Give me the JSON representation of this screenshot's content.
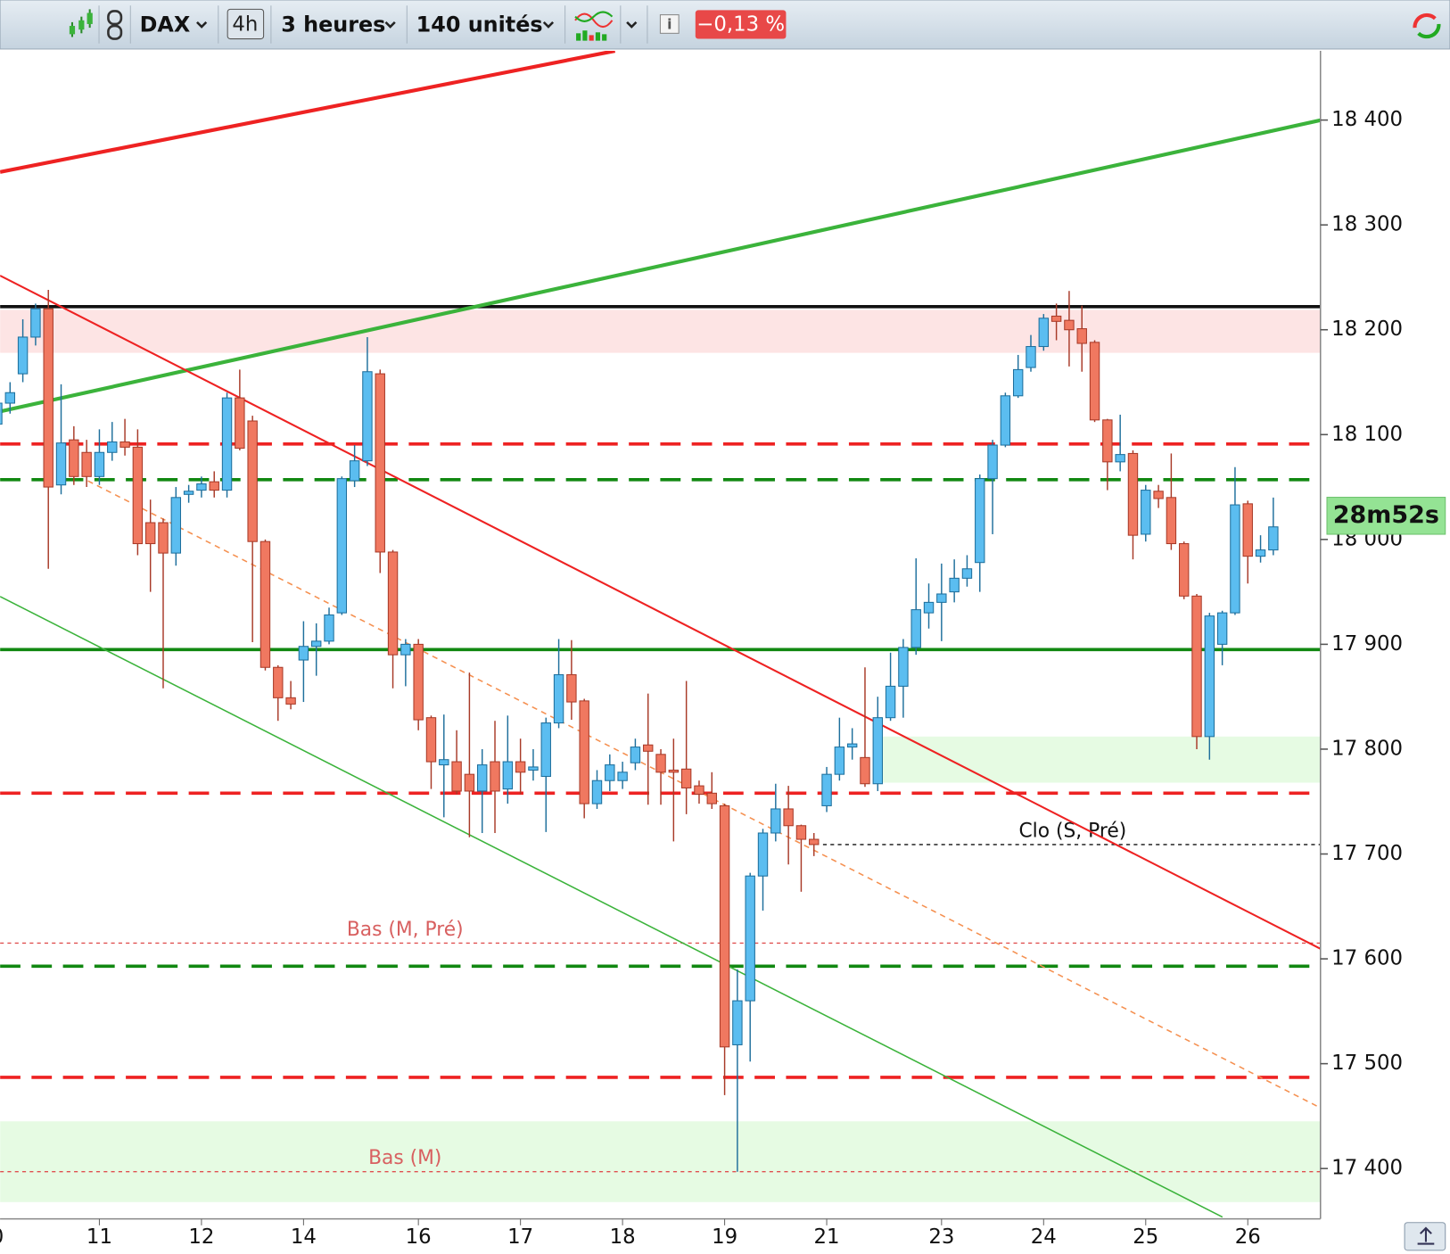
{
  "toolbar": {
    "symbol": "DAX",
    "timeframe_badge": "4h",
    "period": "3 heures",
    "units": "140 unités",
    "change": "−0,13 %"
  },
  "chart_data": {
    "type": "candlestick",
    "countdown": "28m52s",
    "categories": [
      "0",
      null,
      null,
      null,
      null,
      null,
      null,
      null,
      "11",
      null,
      null,
      null,
      null,
      null,
      null,
      null,
      "12",
      null,
      null,
      null,
      null,
      null,
      null,
      null,
      "14",
      null,
      null,
      null,
      null,
      null,
      null,
      null,
      null,
      "16",
      null,
      null,
      null,
      null,
      null,
      null,
      null,
      "17",
      null,
      null,
      null,
      null,
      null,
      null,
      null,
      "18",
      null,
      null,
      null,
      null,
      null,
      null,
      null,
      "19",
      null,
      null,
      null,
      null,
      null,
      null,
      null,
      "21",
      null,
      null,
      null,
      null,
      null,
      null,
      null,
      null,
      "23",
      null,
      null,
      null,
      null,
      null,
      null,
      null,
      "24",
      null,
      null,
      null,
      null,
      null,
      null,
      null,
      "25",
      null,
      null,
      null,
      null,
      null,
      null,
      null,
      "26",
      null,
      null
    ],
    "open": [
      18110,
      18130,
      18158,
      18193,
      18220,
      18052,
      18095,
      18083,
      18060,
      18083,
      18093,
      18088,
      18016,
      18016,
      17987,
      18043,
      18047,
      18055,
      18047,
      18135,
      18113,
      17998,
      17878,
      17849,
      17885,
      17898,
      17903,
      17930,
      18056,
      18075,
      18158,
      17988,
      17890,
      17900,
      17830,
      17785,
      17788,
      17776,
      17760,
      17788,
      17762,
      17788,
      17780,
      17774,
      17825,
      17871,
      17846,
      17748,
      17770,
      17770,
      17787,
      17804,
      17795,
      17780,
      17781,
      17765,
      17758,
      17746,
      17518,
      17560,
      17679,
      17720,
      17743,
      17727,
      17714,
      17746,
      17776,
      17802,
      17792,
      17767,
      17830,
      17860,
      17897,
      17930,
      17940,
      17950,
      17963,
      17978,
      18058,
      18090,
      18137,
      18164,
      18184,
      18213,
      18209,
      18201,
      18188,
      18114,
      18074,
      18082,
      18005,
      18046,
      18040,
      17996,
      17946,
      17812,
      17900,
      17930,
      18034,
      17984,
      17990
    ],
    "high": [
      18140,
      18150,
      18210,
      18225,
      18238,
      18148,
      18108,
      18095,
      18105,
      18112,
      18115,
      18105,
      18038,
      18020,
      18050,
      18052,
      18060,
      18065,
      18140,
      18162,
      18118,
      18000,
      17880,
      17865,
      17922,
      17920,
      17935,
      18060,
      18090,
      18193,
      18162,
      17990,
      17905,
      17905,
      17832,
      17833,
      17818,
      17873,
      17800,
      17827,
      17832,
      17810,
      17800,
      17830,
      17905,
      17904,
      17848,
      17780,
      17795,
      17788,
      17810,
      17853,
      17800,
      17810,
      17865,
      17770,
      17778,
      17748,
      17590,
      17682,
      17724,
      17767,
      17765,
      17728,
      17720,
      17783,
      17830,
      17820,
      17878,
      17850,
      17892,
      17905,
      17982,
      17958,
      17977,
      17981,
      17985,
      18062,
      18095,
      18140,
      18176,
      18195,
      18215,
      18225,
      18237,
      18223,
      18190,
      18115,
      18119,
      18085,
      18052,
      18052,
      18082,
      17998,
      17948,
      17930,
      17932,
      18069,
      18037,
      18004,
      18040
    ],
    "low": [
      18100,
      18120,
      18150,
      18185,
      17972,
      18043,
      18052,
      18050,
      18052,
      18075,
      18080,
      17985,
      17950,
      17858,
      17975,
      18035,
      18040,
      18040,
      18040,
      18085,
      17902,
      17875,
      17827,
      17838,
      17845,
      17870,
      17900,
      17928,
      18050,
      18070,
      17968,
      17858,
      17860,
      17818,
      17762,
      17735,
      17757,
      17716,
      17720,
      17720,
      17748,
      17757,
      17770,
      17721,
      17820,
      17828,
      17734,
      17743,
      17760,
      17762,
      17780,
      17747,
      17747,
      17712,
      17738,
      17748,
      17743,
      17470,
      17397,
      17502,
      17646,
      17712,
      17690,
      17664,
      17698,
      17740,
      17770,
      17790,
      17764,
      17760,
      17827,
      17830,
      17890,
      17915,
      17903,
      17940,
      17955,
      17950,
      18005,
      18088,
      18135,
      18160,
      18180,
      18190,
      18165,
      18160,
      18112,
      18047,
      18065,
      17981,
      17998,
      18030,
      17990,
      17943,
      17800,
      17790,
      17880,
      17928,
      17958,
      17978,
      17985
    ],
    "close": [
      18130,
      18140,
      18193,
      18220,
      18050,
      18092,
      18060,
      18060,
      18083,
      18093,
      18088,
      17996,
      17996,
      17987,
      18040,
      18046,
      18053,
      18047,
      18135,
      18087,
      17998,
      17878,
      17849,
      17843,
      17898,
      17903,
      17928,
      18058,
      18075,
      18160,
      17988,
      17890,
      17900,
      17828,
      17788,
      17790,
      17760,
      17760,
      17785,
      17760,
      17788,
      17778,
      17783,
      17825,
      17871,
      17845,
      17748,
      17770,
      17785,
      17778,
      17802,
      17798,
      17778,
      17778,
      17763,
      17757,
      17748,
      17516,
      17560,
      17679,
      17720,
      17743,
      17727,
      17714,
      17709,
      17776,
      17802,
      17805,
      17767,
      17830,
      17860,
      17897,
      17933,
      17940,
      17948,
      17963,
      17972,
      18058,
      18090,
      18137,
      18162,
      18184,
      18211,
      18208,
      18200,
      18187,
      18114,
      18074,
      18081,
      18004,
      18047,
      18039,
      17996,
      17946,
      17812,
      17927,
      17930,
      18033,
      17984,
      17990,
      18012
    ],
    "up_color": "#5bbdf0",
    "down_color": "#f07860",
    "ylim": [
      17352,
      18466
    ],
    "yticks": [
      {
        "value": 17400,
        "label": "17 400"
      },
      {
        "value": 17500,
        "label": "17 500"
      },
      {
        "value": 17600,
        "label": "17 600"
      },
      {
        "value": 17700,
        "label": "17 700"
      },
      {
        "value": 17800,
        "label": "17 800"
      },
      {
        "value": 17900,
        "label": "17 900"
      },
      {
        "value": 18000,
        "label": "18 000"
      },
      {
        "value": 18100,
        "label": "18 100"
      },
      {
        "value": 18200,
        "label": "18 200"
      },
      {
        "value": 18300,
        "label": "18 300"
      },
      {
        "value": 18400,
        "label": "18 400"
      }
    ],
    "zones": [
      {
        "from": 18178,
        "to": 18219,
        "color": "#fde4e4"
      },
      {
        "from": 17768,
        "to": 17812,
        "color": "#e6fbe3",
        "partial": true
      },
      {
        "from": 17368,
        "to": 17445,
        "color": "#e6fbe3"
      }
    ],
    "levels": [
      {
        "value": 18222,
        "color": "#111111",
        "style": "solid"
      },
      {
        "value": 18091,
        "color": "#ee2222",
        "style": "dashed"
      },
      {
        "value": 18057,
        "color": "#118811",
        "style": "dashed"
      },
      {
        "value": 17895,
        "color": "#118811",
        "style": "solid"
      },
      {
        "value": 17758,
        "color": "#ee2222",
        "style": "dashed"
      },
      {
        "value": 17709,
        "color": "#111111",
        "style": "dotted-partial",
        "label": "Clo (S, Pré)"
      },
      {
        "value": 17615,
        "color": "#e05050",
        "style": "dotted",
        "label": "Bas (M, Pré)"
      },
      {
        "value": 17593,
        "color": "#118811",
        "style": "dashed"
      },
      {
        "value": 17487,
        "color": "#ee2222",
        "style": "dashed"
      },
      {
        "value": 17397,
        "color": "#e05050",
        "style": "dotted",
        "label": "Bas (M)"
      }
    ]
  }
}
